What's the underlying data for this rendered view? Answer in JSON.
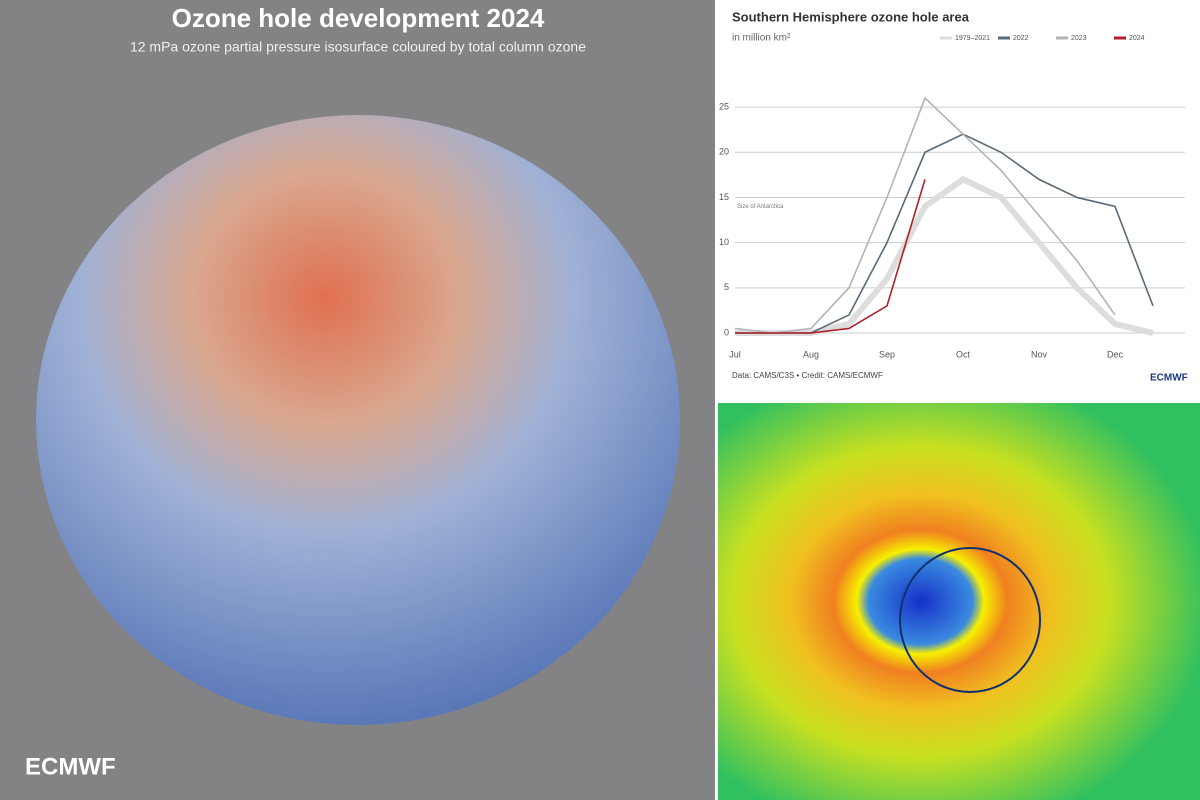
{
  "left_panel": {
    "title": "Ozone hole development 2024",
    "subtitle": "12 mPa ozone partial pressure isosurface coloured by total column ozone",
    "logo": "ECMWF"
  },
  "chart_data": {
    "type": "line",
    "title": "Southern Hemisphere ozone hole area",
    "subtitle": "in million km²",
    "categories": [
      "Jul",
      null,
      "Aug",
      null,
      "Sep",
      null,
      "Oct",
      null,
      "Nov",
      null,
      "Dec",
      null
    ],
    "series": [
      {
        "name": "1979–2021",
        "color": "#dddddd",
        "values": [
          0,
          0,
          0,
          1,
          6,
          14,
          17,
          15,
          10,
          5,
          1,
          0
        ]
      },
      {
        "name": "2022",
        "color": "#5a6a78",
        "values": [
          0,
          0,
          0,
          2,
          10,
          20,
          22,
          20,
          17,
          15,
          14,
          3
        ]
      },
      {
        "name": "2023",
        "color": "#b0b4b8",
        "values": [
          0.5,
          0,
          0.5,
          5,
          15,
          26,
          22,
          18,
          13,
          8,
          2,
          null
        ]
      },
      {
        "name": "2024",
        "color": "#b0202a",
        "values": [
          0,
          0,
          0,
          0.5,
          3,
          17,
          null,
          null,
          null,
          null,
          null,
          null
        ]
      }
    ],
    "ylim": [
      0,
      27
    ],
    "yticks": [
      0,
      5,
      10,
      15,
      20,
      25
    ],
    "grid": true,
    "annotation": "Size of Antarctica",
    "source": "Data: CAMS/C3S • Credit: CAMS/ECMWF",
    "logo": "ECMWF"
  }
}
